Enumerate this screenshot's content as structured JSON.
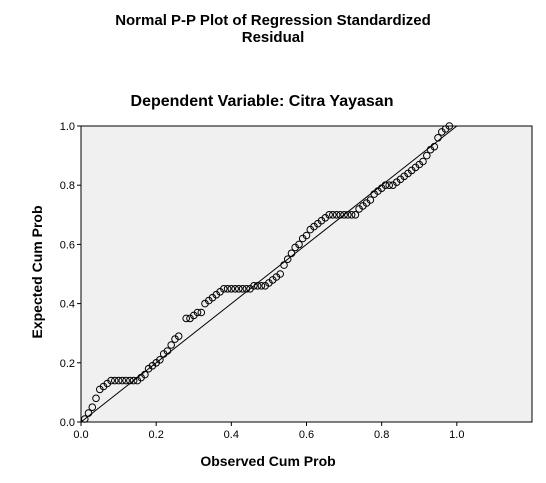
{
  "chart_data": {
    "type": "scatter",
    "title_line1": "Normal P-P Plot of Regression Standardized",
    "title_line2": "Residual",
    "subtitle": "Dependent Variable: Citra Yayasan",
    "xlabel": "Observed Cum Prob",
    "ylabel": "Expected Cum Prob",
    "xlim": [
      0,
      1.2
    ],
    "ylim": [
      0,
      1.0
    ],
    "xticks": [
      "0.0",
      "0.2",
      "0.4",
      "0.6",
      "0.8",
      "1.0"
    ],
    "yticks": [
      "0.0",
      "0.2",
      "0.4",
      "0.6",
      "0.8",
      "1.0"
    ],
    "reference_line": [
      [
        0,
        0
      ],
      [
        1,
        1
      ]
    ],
    "grid": false,
    "plot_background": "#f0f0f0",
    "marker_color": "#000000",
    "points": [
      [
        0.01,
        0.01
      ],
      [
        0.02,
        0.03
      ],
      [
        0.03,
        0.05
      ],
      [
        0.04,
        0.08
      ],
      [
        0.05,
        0.11
      ],
      [
        0.06,
        0.12
      ],
      [
        0.07,
        0.13
      ],
      [
        0.08,
        0.14
      ],
      [
        0.09,
        0.14
      ],
      [
        0.1,
        0.14
      ],
      [
        0.11,
        0.14
      ],
      [
        0.12,
        0.14
      ],
      [
        0.13,
        0.14
      ],
      [
        0.14,
        0.14
      ],
      [
        0.15,
        0.14
      ],
      [
        0.16,
        0.15
      ],
      [
        0.17,
        0.16
      ],
      [
        0.18,
        0.18
      ],
      [
        0.19,
        0.19
      ],
      [
        0.2,
        0.2
      ],
      [
        0.21,
        0.21
      ],
      [
        0.22,
        0.23
      ],
      [
        0.23,
        0.24
      ],
      [
        0.24,
        0.26
      ],
      [
        0.25,
        0.28
      ],
      [
        0.26,
        0.29
      ],
      [
        0.28,
        0.35
      ],
      [
        0.29,
        0.35
      ],
      [
        0.3,
        0.36
      ],
      [
        0.31,
        0.37
      ],
      [
        0.32,
        0.37
      ],
      [
        0.33,
        0.4
      ],
      [
        0.34,
        0.41
      ],
      [
        0.35,
        0.42
      ],
      [
        0.36,
        0.43
      ],
      [
        0.37,
        0.44
      ],
      [
        0.38,
        0.45
      ],
      [
        0.39,
        0.45
      ],
      [
        0.4,
        0.45
      ],
      [
        0.41,
        0.45
      ],
      [
        0.42,
        0.45
      ],
      [
        0.43,
        0.45
      ],
      [
        0.44,
        0.45
      ],
      [
        0.45,
        0.45
      ],
      [
        0.46,
        0.46
      ],
      [
        0.47,
        0.46
      ],
      [
        0.48,
        0.46
      ],
      [
        0.49,
        0.46
      ],
      [
        0.5,
        0.47
      ],
      [
        0.51,
        0.48
      ],
      [
        0.52,
        0.49
      ],
      [
        0.53,
        0.5
      ],
      [
        0.54,
        0.53
      ],
      [
        0.55,
        0.55
      ],
      [
        0.56,
        0.57
      ],
      [
        0.57,
        0.59
      ],
      [
        0.58,
        0.6
      ],
      [
        0.59,
        0.62
      ],
      [
        0.6,
        0.63
      ],
      [
        0.61,
        0.65
      ],
      [
        0.62,
        0.66
      ],
      [
        0.63,
        0.67
      ],
      [
        0.64,
        0.68
      ],
      [
        0.65,
        0.69
      ],
      [
        0.66,
        0.7
      ],
      [
        0.67,
        0.7
      ],
      [
        0.68,
        0.7
      ],
      [
        0.69,
        0.7
      ],
      [
        0.7,
        0.7
      ],
      [
        0.71,
        0.7
      ],
      [
        0.72,
        0.7
      ],
      [
        0.73,
        0.7
      ],
      [
        0.74,
        0.72
      ],
      [
        0.75,
        0.73
      ],
      [
        0.76,
        0.74
      ],
      [
        0.77,
        0.75
      ],
      [
        0.78,
        0.77
      ],
      [
        0.79,
        0.78
      ],
      [
        0.8,
        0.79
      ],
      [
        0.81,
        0.8
      ],
      [
        0.82,
        0.8
      ],
      [
        0.83,
        0.8
      ],
      [
        0.84,
        0.81
      ],
      [
        0.85,
        0.82
      ],
      [
        0.86,
        0.83
      ],
      [
        0.87,
        0.84
      ],
      [
        0.88,
        0.85
      ],
      [
        0.89,
        0.86
      ],
      [
        0.9,
        0.87
      ],
      [
        0.91,
        0.88
      ],
      [
        0.92,
        0.9
      ],
      [
        0.93,
        0.92
      ],
      [
        0.94,
        0.93
      ],
      [
        0.95,
        0.96
      ],
      [
        0.96,
        0.98
      ],
      [
        0.97,
        0.99
      ],
      [
        0.98,
        1.0
      ]
    ]
  }
}
